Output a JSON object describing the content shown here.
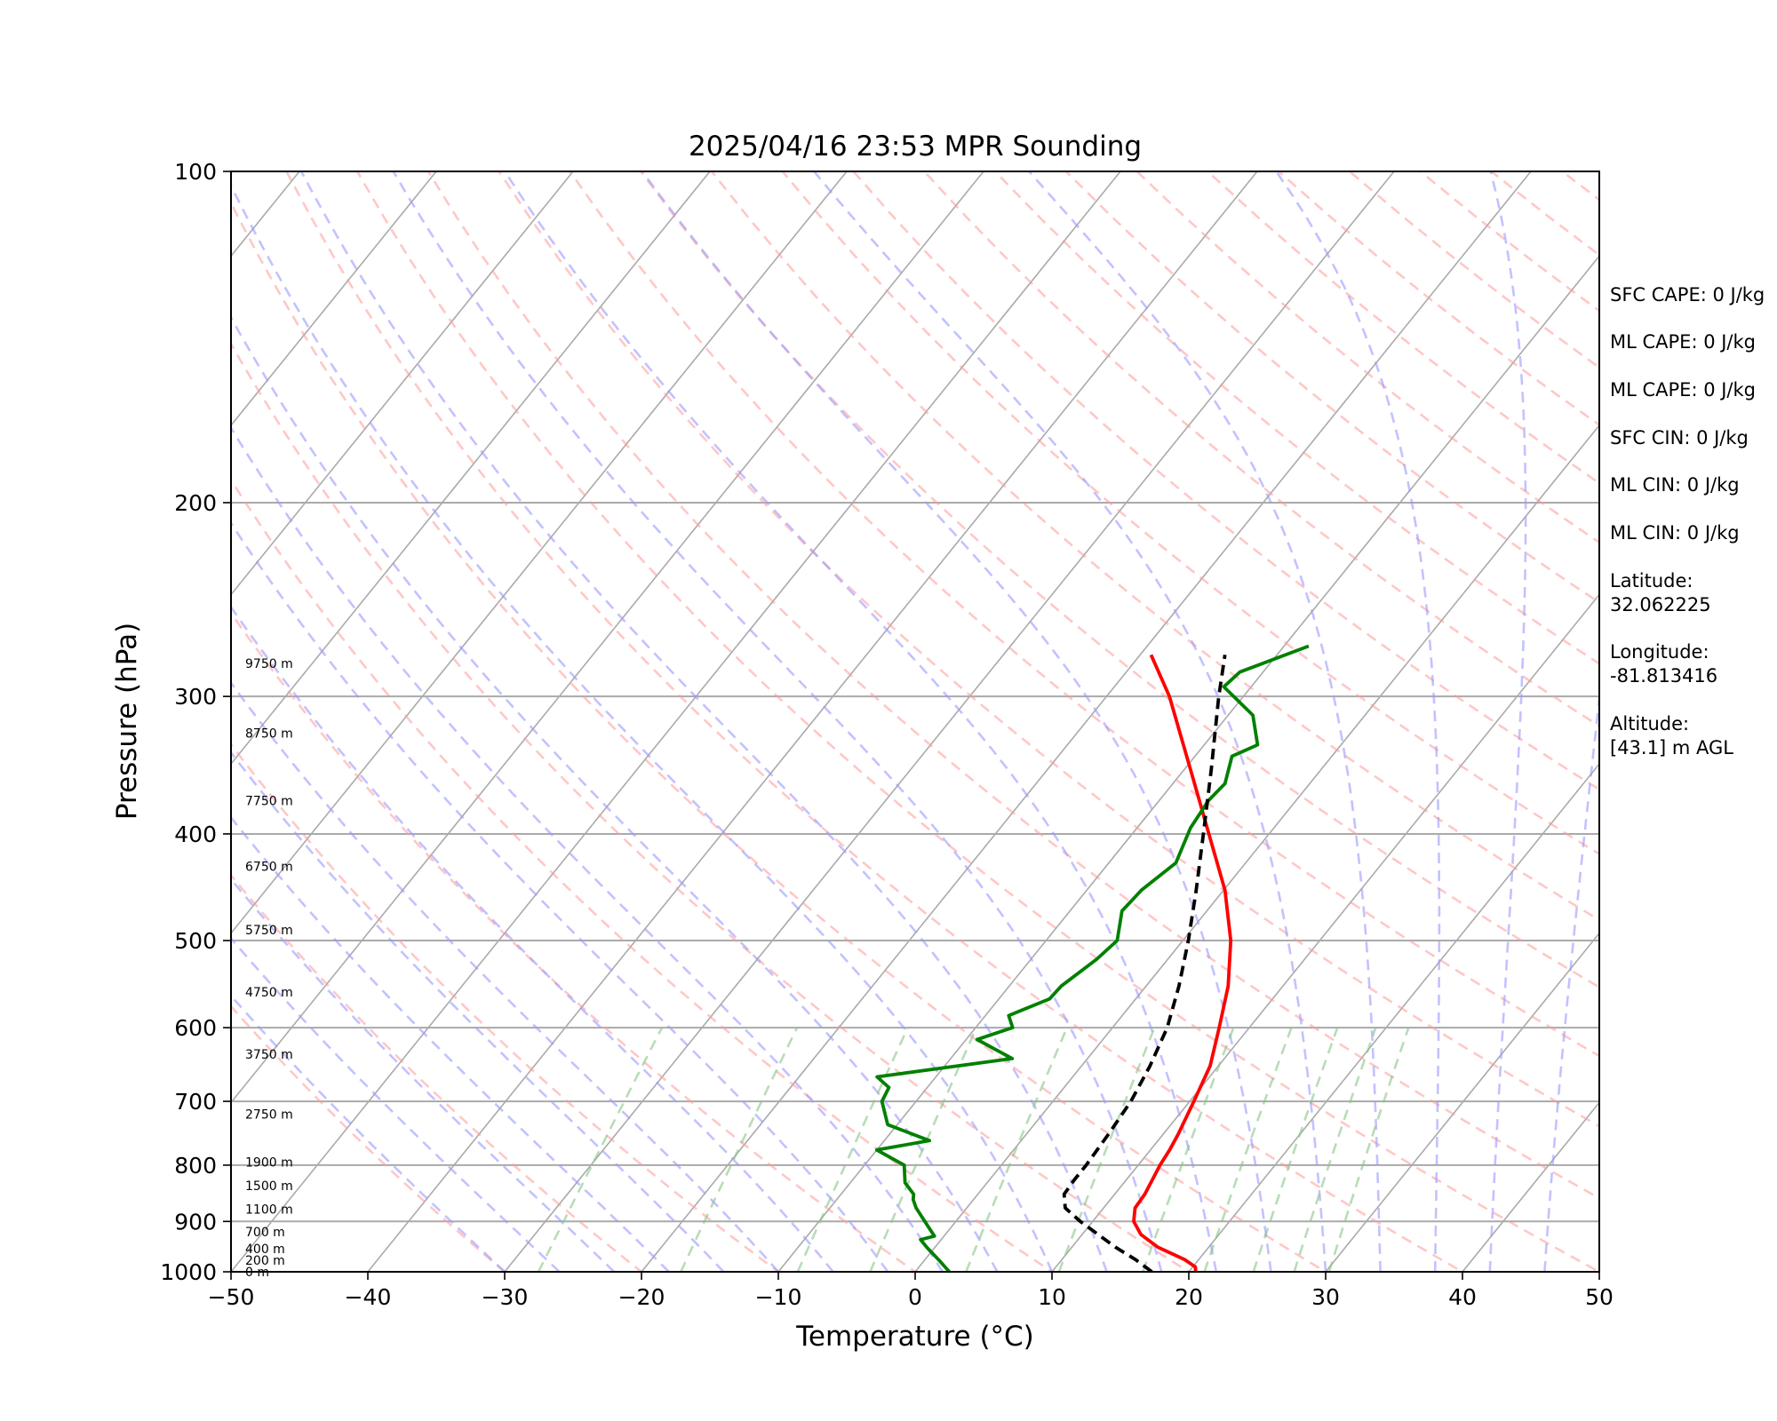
{
  "chart_data": {
    "type": "line",
    "title": "2025/04/16 23:53 MPR Sounding",
    "xlabel": "Temperature (°C)",
    "ylabel": "Pressure (hPa)",
    "xlim": [
      -50,
      50
    ],
    "ylim": [
      1000,
      100
    ],
    "y_scale": "log",
    "x_ticks": [
      "−50",
      "−40",
      "−30",
      "−20",
      "−10",
      "0",
      "10",
      "20",
      "30",
      "40",
      "50"
    ],
    "x_tick_values": [
      -50,
      -40,
      -30,
      -20,
      -10,
      0,
      10,
      20,
      30,
      40,
      50
    ],
    "y_ticks": [
      100,
      200,
      300,
      400,
      500,
      600,
      700,
      800,
      900,
      1000
    ],
    "grid": true,
    "colors": {
      "temperature": "#ff0000",
      "dewpoint": "#008000",
      "parcel": "#000000",
      "dry_adiabat": "#ff9999",
      "moist_adiabat": "#9999ff",
      "mixing_ratio": "#88c488",
      "isotherm": "#aaaaaa"
    },
    "series": [
      {
        "key": "temperature",
        "points": [
          [
            1000,
            20.5
          ],
          [
            990,
            20.2
          ],
          [
            975,
            19.0
          ],
          [
            950,
            16.3
          ],
          [
            925,
            14.3
          ],
          [
            900,
            13.0
          ],
          [
            875,
            12.3
          ],
          [
            850,
            12.2
          ],
          [
            825,
            11.9
          ],
          [
            800,
            11.6
          ],
          [
            775,
            11.4
          ],
          [
            750,
            11.1
          ],
          [
            700,
            10.3
          ],
          [
            650,
            9.4
          ],
          [
            600,
            7.8
          ],
          [
            550,
            6.0
          ],
          [
            500,
            3.5
          ],
          [
            450,
            0.1
          ],
          [
            400,
            -4.4
          ],
          [
            350,
            -9.5
          ],
          [
            300,
            -15.4
          ],
          [
            275,
            -19.2
          ]
        ]
      },
      {
        "key": "dewpoint",
        "points": [
          [
            1000,
            2.5
          ],
          [
            975,
            1.0
          ],
          [
            950,
            -0.6
          ],
          [
            935,
            -1.5
          ],
          [
            928,
            -0.7
          ],
          [
            910,
            -1.7
          ],
          [
            875,
            -3.7
          ],
          [
            860,
            -4.4
          ],
          [
            850,
            -4.7
          ],
          [
            830,
            -6.0
          ],
          [
            800,
            -7.1
          ],
          [
            775,
            -10.0
          ],
          [
            760,
            -6.7
          ],
          [
            735,
            -10.7
          ],
          [
            700,
            -12.5
          ],
          [
            680,
            -12.8
          ],
          [
            665,
            -14.3
          ],
          [
            640,
            -5.5
          ],
          [
            615,
            -9.2
          ],
          [
            600,
            -7.3
          ],
          [
            585,
            -8.3
          ],
          [
            565,
            -6.3
          ],
          [
            550,
            -6.2
          ],
          [
            520,
            -5.2
          ],
          [
            500,
            -4.8
          ],
          [
            470,
            -6.2
          ],
          [
            450,
            -6.0
          ],
          [
            425,
            -5.1
          ],
          [
            395,
            -6.1
          ],
          [
            373,
            -6.4
          ],
          [
            360,
            -6.2
          ],
          [
            340,
            -7.3
          ],
          [
            332,
            -6.1
          ],
          [
            312,
            -8.2
          ],
          [
            294,
            -12.0
          ],
          [
            285,
            -11.7
          ],
          [
            270,
            -8.2
          ]
        ]
      },
      {
        "key": "parcel",
        "points": [
          [
            1000,
            17.3
          ],
          [
            975,
            15.4
          ],
          [
            950,
            13.2
          ],
          [
            900,
            9.1
          ],
          [
            875,
            7.2
          ],
          [
            850,
            6.3
          ],
          [
            825,
            6.2
          ],
          [
            800,
            6.2
          ],
          [
            750,
            6.0
          ],
          [
            700,
            5.7
          ],
          [
            650,
            5.0
          ],
          [
            600,
            4.0
          ],
          [
            550,
            2.4
          ],
          [
            500,
            0.4
          ],
          [
            450,
            -2.0
          ],
          [
            400,
            -4.8
          ],
          [
            350,
            -8.0
          ],
          [
            300,
            -11.8
          ],
          [
            275,
            -13.8
          ]
        ]
      }
    ],
    "height_labels": [
      {
        "p": 1000,
        "label": "0 m"
      },
      {
        "p": 976,
        "label": "200 m"
      },
      {
        "p": 953,
        "label": "400 m"
      },
      {
        "p": 920,
        "label": "700 m"
      },
      {
        "p": 877,
        "label": "1100 m"
      },
      {
        "p": 835,
        "label": "1500 m"
      },
      {
        "p": 795,
        "label": "1900 m"
      },
      {
        "p": 719,
        "label": "2750 m"
      },
      {
        "p": 634,
        "label": "3750 m"
      },
      {
        "p": 557,
        "label": "4750 m"
      },
      {
        "p": 489,
        "label": "5750 m"
      },
      {
        "p": 428,
        "label": "6750 m"
      },
      {
        "p": 373,
        "label": "7750 m"
      },
      {
        "p": 324,
        "label": "8750 m"
      },
      {
        "p": 280,
        "label": "9750 m"
      }
    ]
  },
  "stats": [
    "SFC CAPE: 0 J/kg",
    "ML CAPE: 0 J/kg",
    "ML CAPE: 0 J/kg",
    "SFC CIN: 0 J/kg",
    "ML CIN: 0 J/kg",
    "ML CIN: 0 J/kg",
    "Latitude:",
    "32.062225",
    "Longitude:",
    "-81.813416",
    "Altitude:",
    "[43.1] m AGL"
  ]
}
